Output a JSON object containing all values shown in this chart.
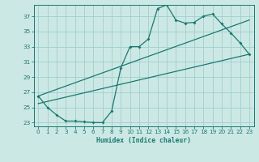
{
  "bg_color": "#cce8e5",
  "grid_color": "#9ecfcc",
  "line_color": "#1a7870",
  "xlabel": "Humidex (Indice chaleur)",
  "xlim": [
    -0.5,
    23.5
  ],
  "ylim": [
    22.5,
    38.5
  ],
  "xticks": [
    0,
    1,
    2,
    3,
    4,
    5,
    6,
    7,
    8,
    9,
    10,
    11,
    12,
    13,
    14,
    15,
    16,
    17,
    18,
    19,
    20,
    21,
    22,
    23
  ],
  "yticks": [
    23,
    25,
    27,
    29,
    31,
    33,
    35,
    37
  ],
  "curve_x": [
    0,
    1,
    2,
    3,
    4,
    5,
    6,
    7,
    8,
    9,
    10,
    11,
    12,
    13,
    14,
    15,
    16,
    17,
    18,
    19,
    20,
    21,
    22,
    23
  ],
  "curve_y": [
    26.5,
    25.0,
    24.0,
    23.2,
    23.2,
    23.1,
    23.0,
    23.0,
    24.5,
    30.2,
    33.0,
    33.0,
    34.0,
    38.0,
    38.5,
    36.5,
    36.1,
    36.2,
    37.0,
    37.3,
    36.0,
    34.8,
    33.5,
    32.0
  ],
  "line1_x": [
    0,
    23
  ],
  "line1_y": [
    25.5,
    32.0
  ],
  "line2_x": [
    0,
    23
  ],
  "line2_y": [
    26.5,
    36.5
  ],
  "xlabel_fontsize": 5.8,
  "tick_fontsize": 5.2,
  "linewidth": 0.9,
  "markersize": 2.0
}
